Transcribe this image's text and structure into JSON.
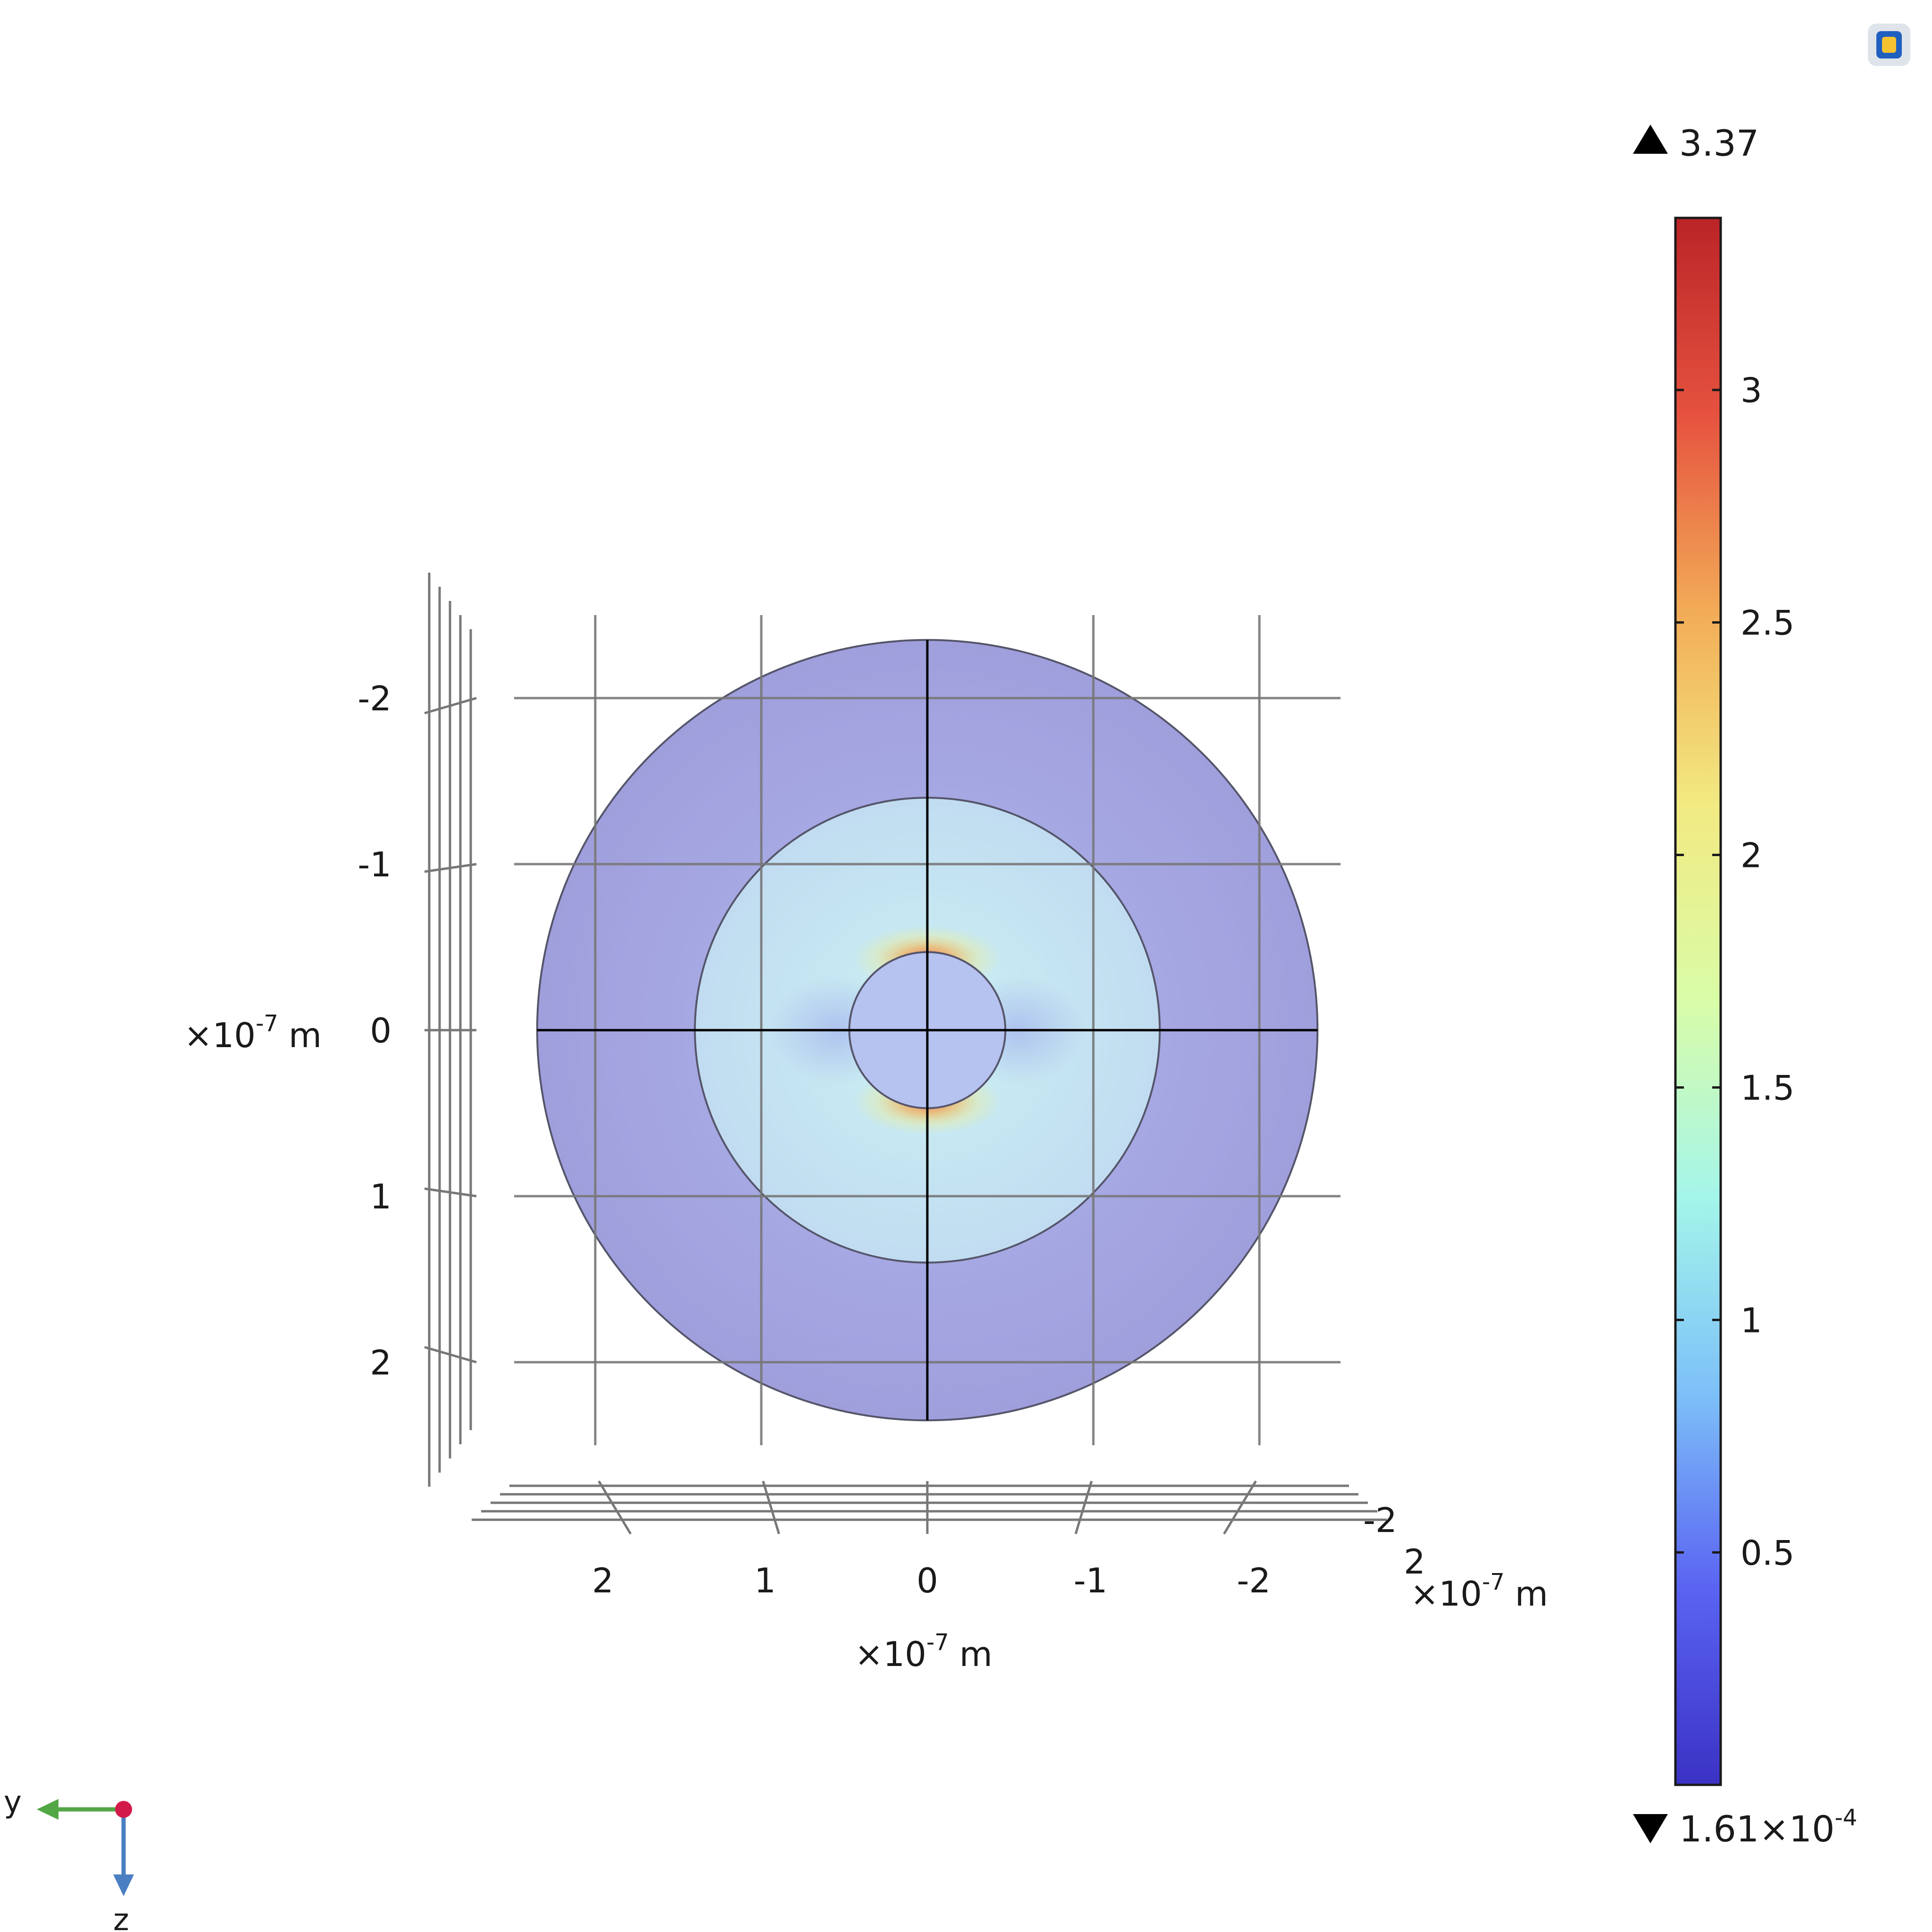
{
  "chart_data": {
    "type": "heatmap",
    "title": "",
    "view": "3D surface plot of a circular cross-section (y-z plane), viewed along x",
    "geometry": {
      "units": "m",
      "outer_domain_radius": 2.35e-07,
      "middle_domain_radius": 1.4e-07,
      "inner_particle_radius": 4.7e-08
    },
    "y_axis": {
      "label": "×10⁻⁷ m",
      "label_base": "×10",
      "label_exp": "-7",
      "label_unit": "m",
      "ticks": [
        "2",
        "1",
        "0",
        "-1",
        "-2"
      ],
      "tick_values": [
        2,
        1,
        0,
        -1,
        -2
      ],
      "reversed": true
    },
    "z_axis": {
      "label": "×10⁻⁷ m",
      "label_base": "×10",
      "label_exp": "-7",
      "label_unit": "m",
      "ticks": [
        "-2",
        "-1",
        "0",
        "1",
        "2"
      ],
      "tick_values": [
        -2,
        -1,
        0,
        1,
        2
      ]
    },
    "depth_axis": {
      "label": "×10⁻⁷ m",
      "label_base": "×10",
      "label_exp": "-7",
      "label_unit": "m",
      "ticks": [
        "-2",
        "2"
      ]
    },
    "field_regions": [
      {
        "region": "outer shell",
        "value": 0.45,
        "color": "#a3a3e0"
      },
      {
        "region": "middle domain",
        "value": 1.0,
        "color": "#c2e1f0"
      },
      {
        "region": "inner particle",
        "value": 0.7,
        "color": "#b6c2ef"
      },
      {
        "region": "hot spots at particle poles (±z)",
        "value": 3.37,
        "color": "#e9645a"
      }
    ],
    "colorbar": {
      "max_label": "3.37",
      "min_label_base": "1.61×10",
      "min_label_exp": "-4",
      "min": 0.000161,
      "max": 3.37,
      "ticks": [
        "0.5",
        "1",
        "1.5",
        "2",
        "2.5",
        "3"
      ],
      "tick_values": [
        0.5,
        1,
        1.5,
        2,
        2.5,
        3
      ],
      "colormap": [
        "#3b32c4",
        "#5a63f2",
        "#7dc0f8",
        "#a4f5ea",
        "#d9fca8",
        "#f2ea82",
        "#f2ab57",
        "#e6523f",
        "#bb2427"
      ]
    },
    "grid": true,
    "legend": "colorbar-right"
  },
  "triad": {
    "y_label": "y",
    "z_label": "z",
    "colors": {
      "y": "#52a645",
      "z": "#4a7fc1",
      "x": "#d21a4a"
    }
  },
  "colors": {
    "outer": "#a3a3e0",
    "middle": "#c2e1f0",
    "inner": "#b6c2ef",
    "hot": "#e9645a",
    "grid": "#777777",
    "axis_line": "#000000",
    "boundary": "#55556a"
  }
}
